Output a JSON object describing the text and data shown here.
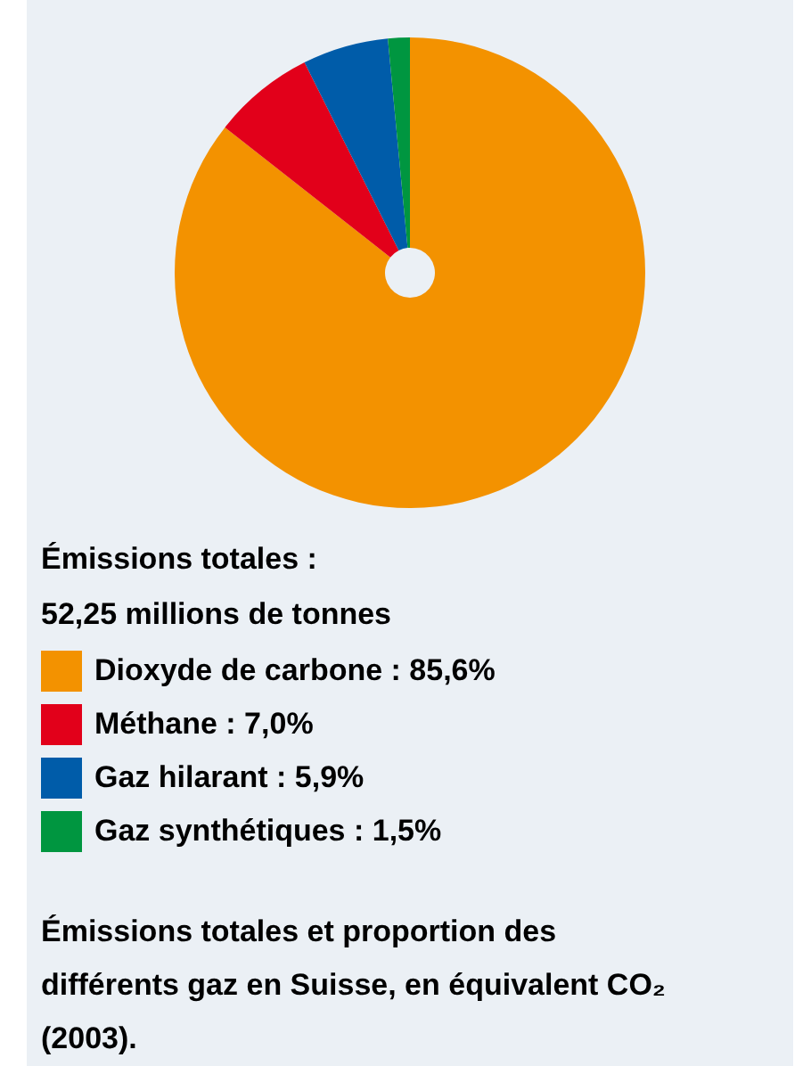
{
  "chart_data": {
    "type": "pie",
    "title": "Émissions totales :",
    "subtitle": "52,25 millions de tonnes",
    "categories": [
      "Dioxyde de carbone : 85,6%",
      "Méthane : 7,0%",
      "Gaz hilarant : 5,9%",
      "Gaz synthétiques : 1,5%"
    ],
    "values": [
      85.6,
      7.0,
      5.9,
      1.5
    ],
    "colors": [
      "#f39200",
      "#e2001a",
      "#005ca9",
      "#009640"
    ],
    "legend": "bottom left",
    "annotations": [
      "Émissions totales et proportion des différents gaz en Suisse, en équivalent CO₂ (2003)."
    ]
  }
}
